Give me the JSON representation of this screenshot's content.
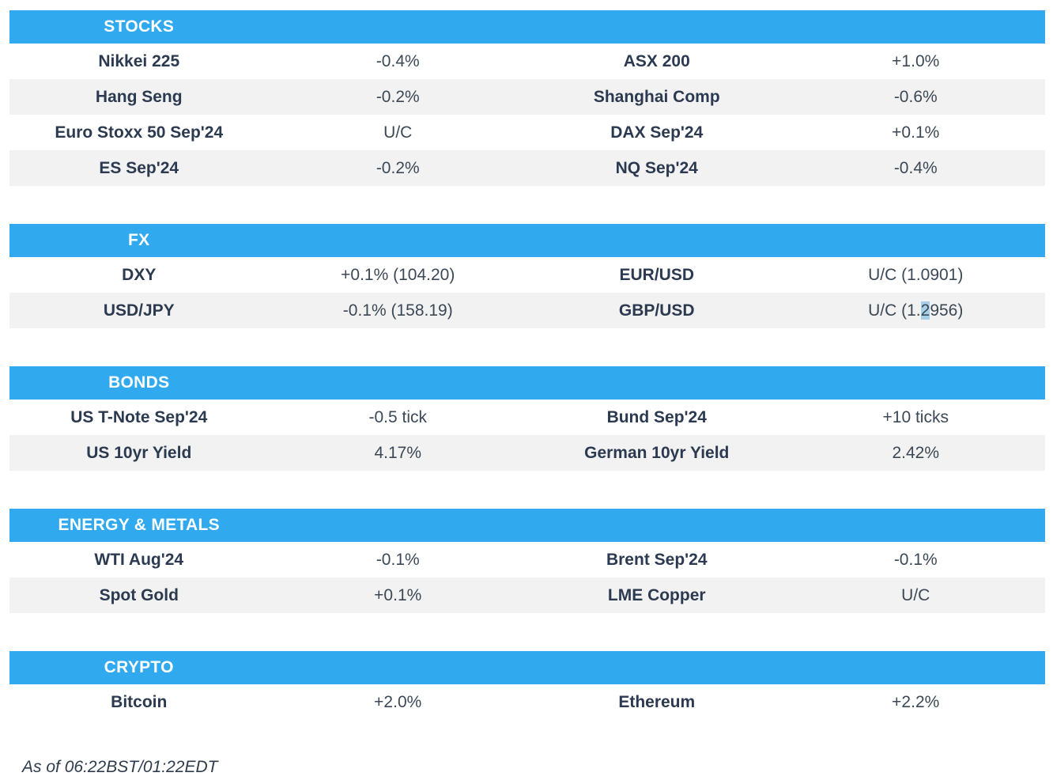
{
  "colors": {
    "header_bg": "#30a9ee",
    "row_alt_bg": "#f2f2f2",
    "label_color": "#2b3a50",
    "value_color": "#3c4856",
    "highlight_bg": "#a9cfe6",
    "footer_color": "#2f3c4c"
  },
  "sections": [
    {
      "title": "STOCKS",
      "rows": [
        [
          {
            "label": "Nikkei 225",
            "value": "-0.4%"
          },
          {
            "label": "ASX 200",
            "value": "+1.0%"
          }
        ],
        [
          {
            "label": "Hang Seng",
            "value": "-0.2%"
          },
          {
            "label": "Shanghai Comp",
            "value": "-0.6%"
          }
        ],
        [
          {
            "label": "Euro Stoxx 50 Sep'24",
            "value": "U/C"
          },
          {
            "label": "DAX Sep'24",
            "value": "+0.1%"
          }
        ],
        [
          {
            "label": "ES Sep'24",
            "value": "-0.2%"
          },
          {
            "label": "NQ Sep'24",
            "value": "-0.4%"
          }
        ]
      ]
    },
    {
      "title": "FX",
      "rows": [
        [
          {
            "label": "DXY",
            "value": "+0.1% (104.20)"
          },
          {
            "label": "EUR/USD",
            "value": "U/C (1.0901)"
          }
        ],
        [
          {
            "label": "USD/JPY",
            "value": "-0.1% (158.19)"
          },
          {
            "label": "GBP/USD",
            "value": "U/C (1.2956)",
            "value_pre": "U/C (1.",
            "value_sel": "2",
            "value_post": "956)"
          }
        ]
      ]
    },
    {
      "title": "BONDS",
      "rows": [
        [
          {
            "label": "US T-Note Sep'24",
            "value": "-0.5 tick"
          },
          {
            "label": "Bund Sep'24",
            "value": "+10 ticks"
          }
        ],
        [
          {
            "label": "US 10yr Yield",
            "value": "4.17%"
          },
          {
            "label": "German 10yr Yield",
            "value": "2.42%"
          }
        ]
      ]
    },
    {
      "title": "ENERGY & METALS",
      "rows": [
        [
          {
            "label": "WTI Aug'24",
            "value": "-0.1%"
          },
          {
            "label": "Brent Sep'24",
            "value": "-0.1%"
          }
        ],
        [
          {
            "label": "Spot Gold",
            "value": "+0.1%"
          },
          {
            "label": "LME Copper",
            "value": "U/C"
          }
        ]
      ]
    },
    {
      "title": "CRYPTO",
      "rows": [
        [
          {
            "label": "Bitcoin",
            "value": "+2.0%"
          },
          {
            "label": "Ethereum",
            "value": "+2.2%"
          }
        ]
      ]
    }
  ],
  "footer": {
    "as_of": "As of 06:22BST/01:22EDT"
  }
}
